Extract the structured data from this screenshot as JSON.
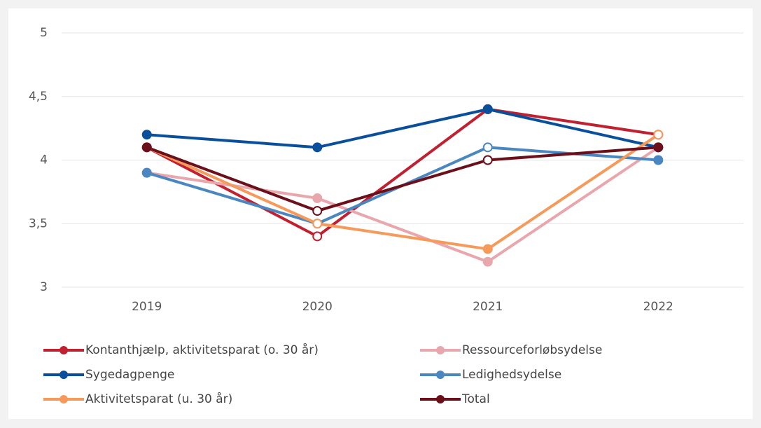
{
  "chart_data": {
    "type": "line",
    "categories": [
      "2019",
      "2020",
      "2021",
      "2022"
    ],
    "ylim": [
      3,
      5
    ],
    "yticks": [
      3,
      {
        "value": 3.5,
        "label": "3,5"
      },
      4,
      {
        "value": 4.5,
        "label": "4,5"
      },
      5
    ],
    "grid": true,
    "series": [
      {
        "name": "Kontanthjælp, aktivitetsparat (o. 30 år)",
        "color": "#c0202f",
        "values": [
          4.1,
          3.4,
          4.4,
          4.2
        ],
        "hollow": [
          false,
          true,
          false,
          false
        ]
      },
      {
        "name": "Ressourceforløbsydelse",
        "color": "#e8a6ad",
        "values": [
          3.9,
          3.7,
          3.2,
          4.1
        ],
        "hollow": [
          false,
          false,
          false,
          false
        ]
      },
      {
        "name": "Sygedagpenge",
        "color": "#0a4f9c",
        "values": [
          4.2,
          4.1,
          4.4,
          4.1
        ],
        "hollow": [
          false,
          false,
          false,
          false
        ]
      },
      {
        "name": "Ledighedsydelse",
        "color": "#4a86c0",
        "values": [
          3.9,
          3.5,
          4.1,
          4.0
        ],
        "hollow": [
          false,
          false,
          true,
          false
        ]
      },
      {
        "name": "Aktivitetsparat (u. 30 år)",
        "color": "#f59a5a",
        "values": [
          4.1,
          3.5,
          3.3,
          4.2
        ],
        "hollow": [
          false,
          true,
          false,
          true
        ]
      },
      {
        "name": "Total",
        "color": "#6b0f1a",
        "values": [
          4.1,
          3.6,
          4.0,
          4.1
        ],
        "hollow": [
          false,
          true,
          true,
          false
        ]
      }
    ]
  }
}
